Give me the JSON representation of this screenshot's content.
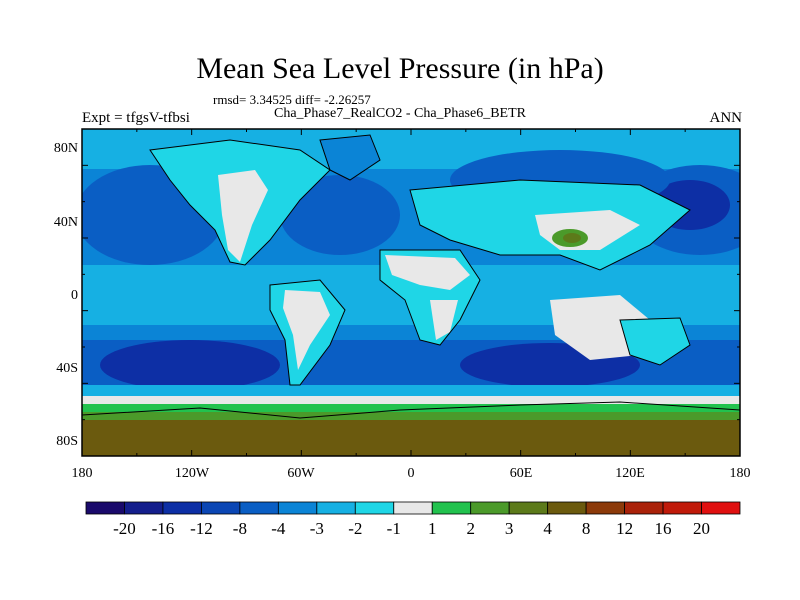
{
  "title": "Mean Sea Level Pressure (in hPa)",
  "subtitle": "rmsd= 3.34525 diff= -2.26257",
  "left_string": "Expt = tfgsV-tfbsi",
  "center_string": "Cha_Phase7_RealCO2 - Cha_Phase6_BETR",
  "right_string": "ANN",
  "lat_labels": [
    "80N",
    "40N",
    "0",
    "40S",
    "80S"
  ],
  "lon_labels": [
    "180",
    "120W",
    "60W",
    "0",
    "60E",
    "120E",
    "180"
  ],
  "colorbar": {
    "levels": [
      "-20",
      "-16",
      "-12",
      "-8",
      "-4",
      "-3",
      "-2",
      "-1",
      "1",
      "2",
      "3",
      "4",
      "8",
      "12",
      "16",
      "20"
    ],
    "colors": [
      "#1a0a6b",
      "#141e8c",
      "#0d2fa5",
      "#0b46b4",
      "#0a5ec4",
      "#0b84d6",
      "#16b0e3",
      "#1fd6e6",
      "#e8e8e8",
      "#22c24e",
      "#4b9a2a",
      "#5c7a1a",
      "#6b5a0e",
      "#8c3a0a",
      "#aa220a",
      "#c01a0a",
      "#e01010"
    ]
  },
  "colors": {
    "ocean_deep": "#0d2fa5",
    "ocean_mid": "#0a5ec4",
    "ocean_light": "#0b84d6",
    "ocean_pale": "#16b0e3",
    "cyan": "#1fd6e6",
    "near_zero": "#e8e8e8",
    "green": "#22c24e",
    "olive": "#5c7a1a",
    "brown": "#6b5a0e"
  }
}
